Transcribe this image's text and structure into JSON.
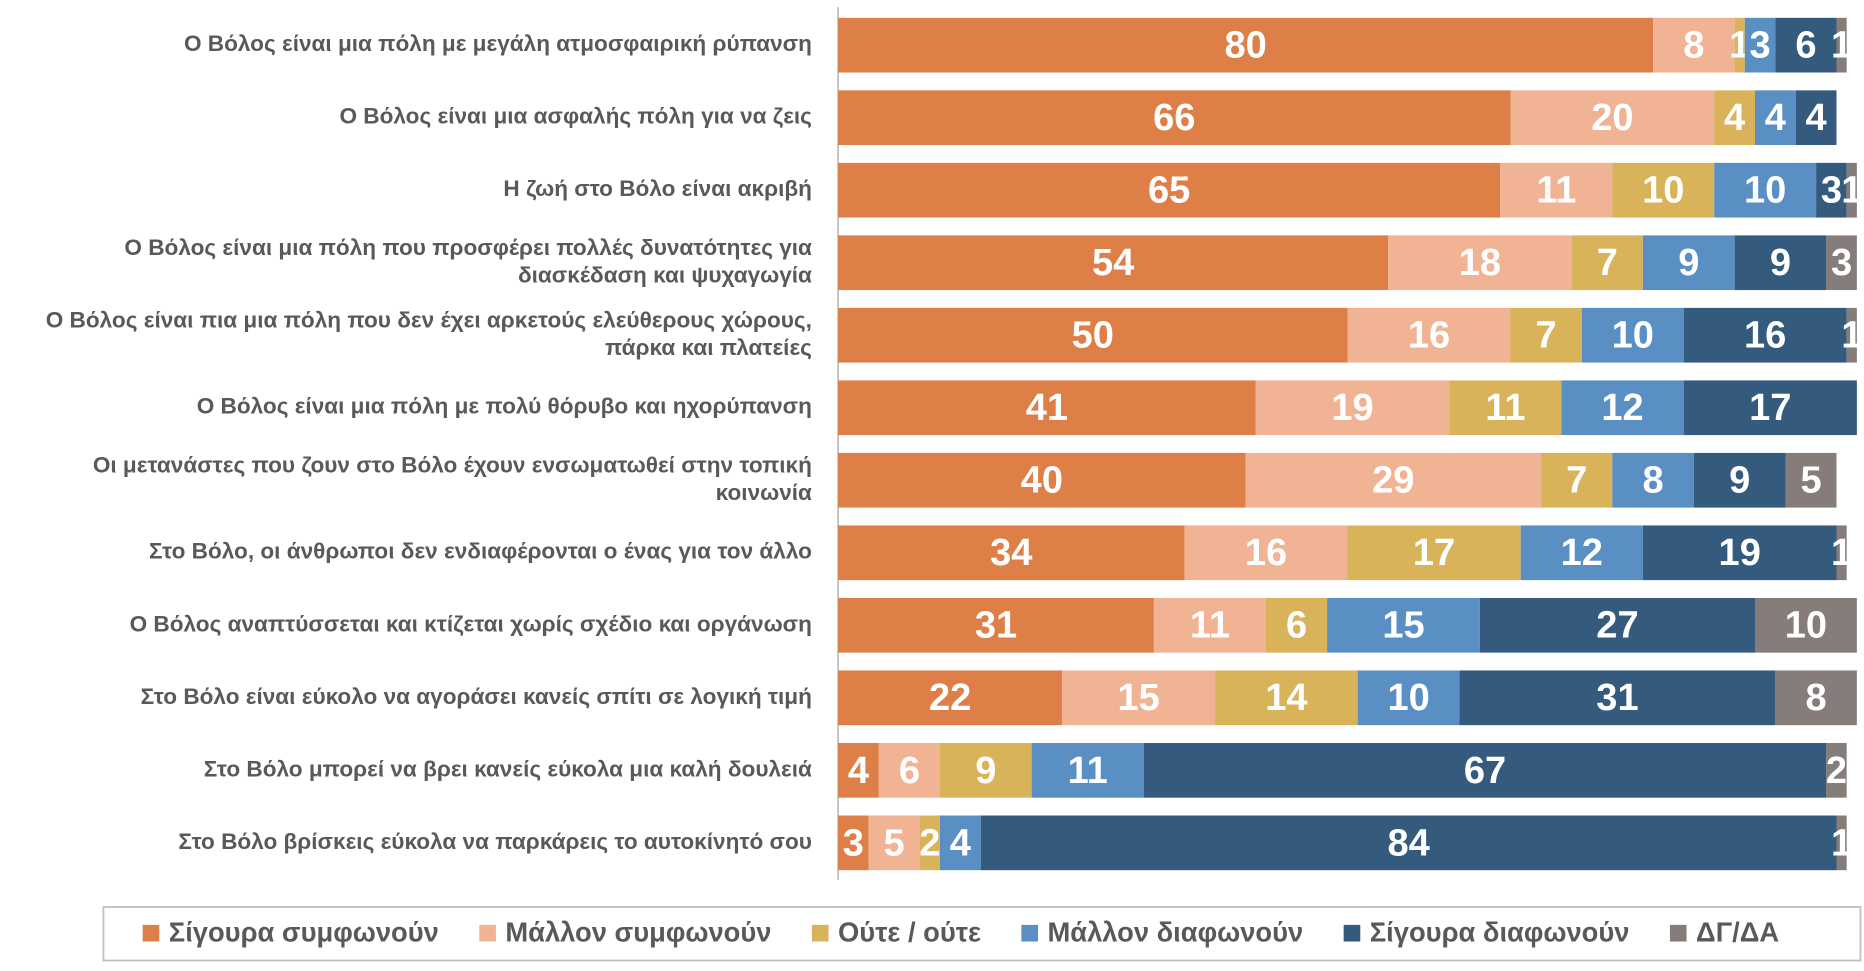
{
  "chart_data": {
    "type": "stacked-barh",
    "categories": [
      "Ο Βόλος είναι μια πόλη με μεγάλη ατμοσφαιρική ρύπανση",
      "Ο Βόλος είναι μια ασφαλής πόλη για να ζεις",
      "Η ζωή στο Βόλο είναι ακριβή",
      "Ο Βόλος είναι μια πόλη που προσφέρει πολλές δυνατότητες για διασκέδαση και ψυχαγωγία",
      "Ο Βόλος είναι πια μια πόλη που δεν έχει αρκετούς ελεύθερους χώρους, πάρκα και πλατείες",
      "Ο Βόλος είναι μια πόλη με πολύ θόρυβο και ηχορύπανση",
      "Οι μετανάστες που ζουν στο Βόλο έχουν ενσωματωθεί στην τοπική κοινωνία",
      "Στο Βόλο, οι άνθρωποι δεν ενδιαφέρονται ο ένας για τον άλλο",
      "Ο Βόλος αναπτύσσεται και κτίζεται χωρίς σχέδιο και οργάνωση",
      "Στο Βόλο είναι εύκολο να αγοράσει κανείς σπίτι σε λογική τιμή",
      "Στο Βόλο μπορεί να βρει κανείς εύκολα μια καλή δουλειά",
      "Στο Βόλο βρίσκεις εύκολα να παρκάρεις το αυτοκίνητό σου"
    ],
    "series": [
      {
        "name": "Σίγουρα συμφωνούν",
        "color": "#dd7f47",
        "values": [
          80,
          66,
          65,
          54,
          50,
          41,
          40,
          34,
          31,
          22,
          4,
          3
        ]
      },
      {
        "name": "Μάλλον συμφωνούν",
        "color": "#f0b393",
        "values": [
          8,
          20,
          11,
          18,
          16,
          19,
          29,
          16,
          11,
          15,
          6,
          5
        ]
      },
      {
        "name": "Ούτε / ούτε",
        "color": "#d9b35a",
        "values": [
          1,
          4,
          10,
          7,
          7,
          11,
          7,
          17,
          6,
          14,
          9,
          2
        ]
      },
      {
        "name": "Μάλλον διαφωνούν",
        "color": "#5a8fc4",
        "values": [
          3,
          4,
          10,
          9,
          10,
          12,
          8,
          12,
          15,
          10,
          11,
          4
        ]
      },
      {
        "name": "Σίγουρα διαφωνούν",
        "color": "#345a7e",
        "values": [
          6,
          4,
          3,
          9,
          16,
          17,
          9,
          19,
          27,
          31,
          67,
          84
        ]
      },
      {
        "name": "ΔΓ/ΔΑ",
        "color": "#867c7a",
        "values": [
          1,
          null,
          1,
          3,
          1,
          null,
          5,
          1,
          10,
          8,
          2,
          1
        ]
      }
    ],
    "xlim": [
      0,
      100
    ]
  }
}
